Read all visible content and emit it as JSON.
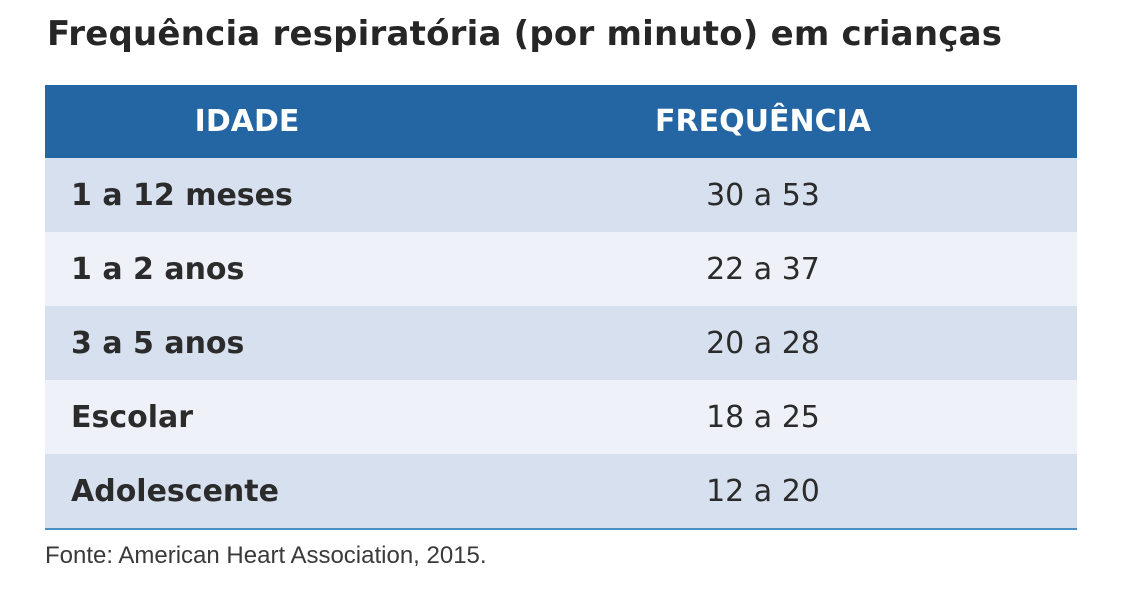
{
  "title": "Frequência respiratória (por minuto) em crianças",
  "table": {
    "headers": [
      "IDADE",
      "FREQUÊNCIA"
    ],
    "rows": [
      {
        "age": "1 a 12 meses",
        "frequency": "30 a 53"
      },
      {
        "age": "1 a 2 anos",
        "frequency": "22 a 37"
      },
      {
        "age": "3 a 5 anos",
        "frequency": "20 a 28"
      },
      {
        "age": "Escolar",
        "frequency": "18 a 25"
      },
      {
        "age": "Adolescente",
        "frequency": "12 a 20"
      }
    ]
  },
  "source": "Fonte: American Heart Association, 2015.",
  "colors": {
    "header_background": "#2466a3",
    "row_odd": "#d7e0ee",
    "row_even": "#eef2f8"
  }
}
